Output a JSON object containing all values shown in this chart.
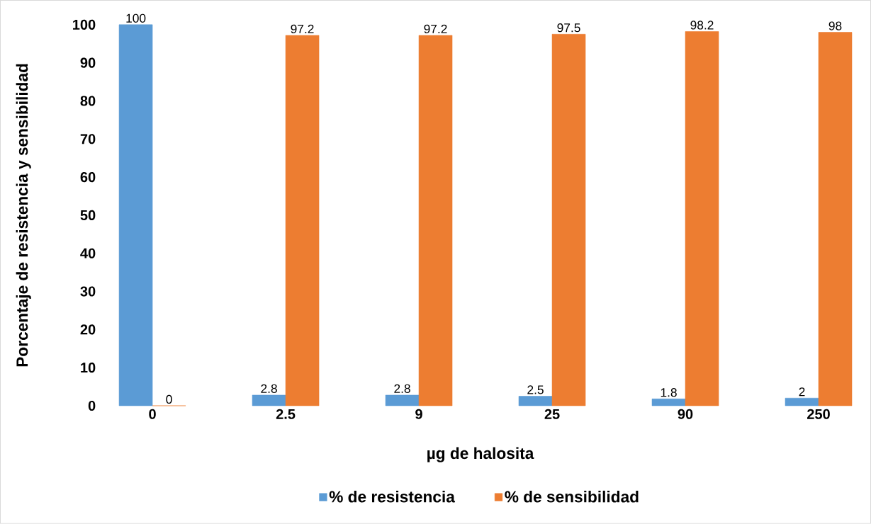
{
  "chart_data": {
    "type": "bar",
    "xlabel": "µg de halosita",
    "ylabel": "Porcentaje de resistencia y sensibilidad",
    "categories": [
      "0",
      "2.5",
      "9",
      "25",
      "90",
      "250"
    ],
    "series": [
      {
        "name": "% de resistencia",
        "color": "#5b9bd5",
        "values": [
          100,
          2.8,
          2.8,
          2.5,
          1.8,
          2
        ]
      },
      {
        "name": "% de sensibilidad",
        "color": "#ed7d31",
        "values": [
          0,
          97.2,
          97.2,
          97.5,
          98.2,
          98
        ]
      }
    ],
    "ylim": [
      0,
      100
    ],
    "yticks": [
      0,
      10,
      20,
      30,
      40,
      50,
      60,
      70,
      80,
      90,
      100
    ],
    "data_labels": true,
    "legend": "bottom",
    "grid": false
  }
}
